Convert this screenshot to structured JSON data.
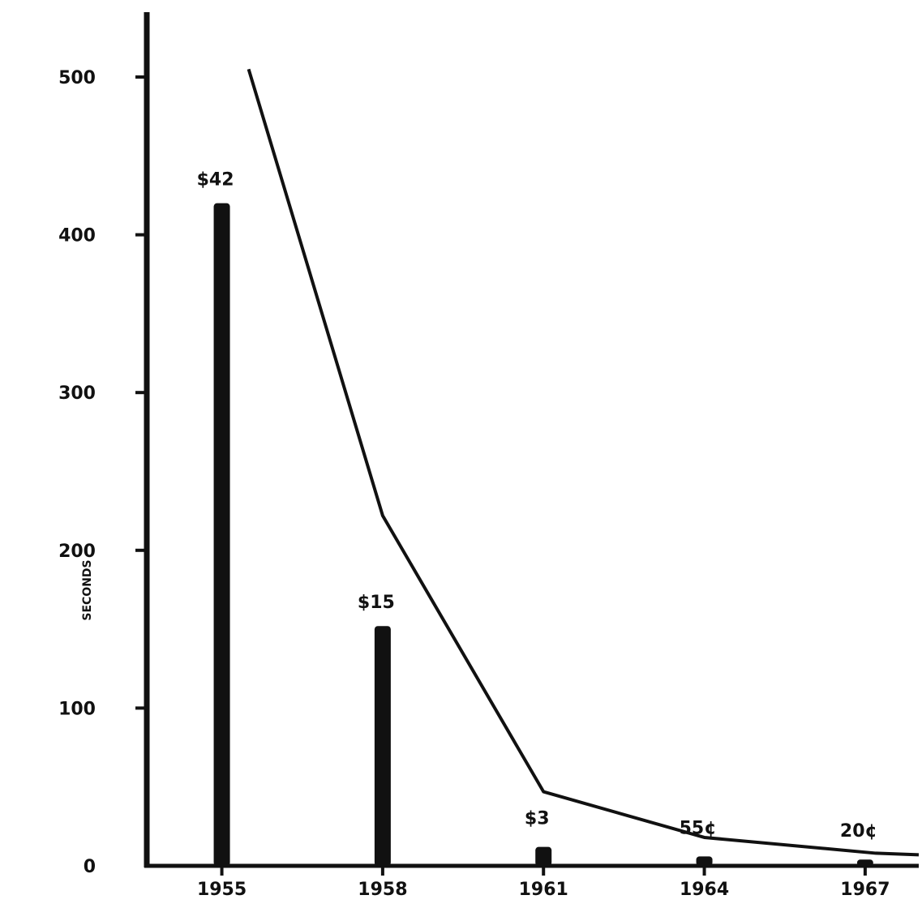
{
  "chart_data": {
    "type": "bar",
    "categories": [
      "1955",
      "1958",
      "1961",
      "1964",
      "1967"
    ],
    "values": [
      420,
      152,
      12,
      6,
      4
    ],
    "value_labels": [
      "$42",
      "$15",
      "$3",
      "55¢",
      "20¢"
    ],
    "line": {
      "x": [
        1955.5,
        1958,
        1961,
        1964,
        1967.2,
        1968
      ],
      "values": [
        505,
        222,
        47,
        18,
        8,
        7
      ]
    },
    "ylabel": "SECONDS",
    "yticks": [
      0,
      100,
      200,
      300,
      400,
      500
    ],
    "ylim": [
      0,
      540
    ],
    "xlim": [
      1953.6,
      1968
    ],
    "grid": false,
    "colors": {
      "bar": "#111111",
      "line": "#111111",
      "axis": "#111111"
    }
  }
}
